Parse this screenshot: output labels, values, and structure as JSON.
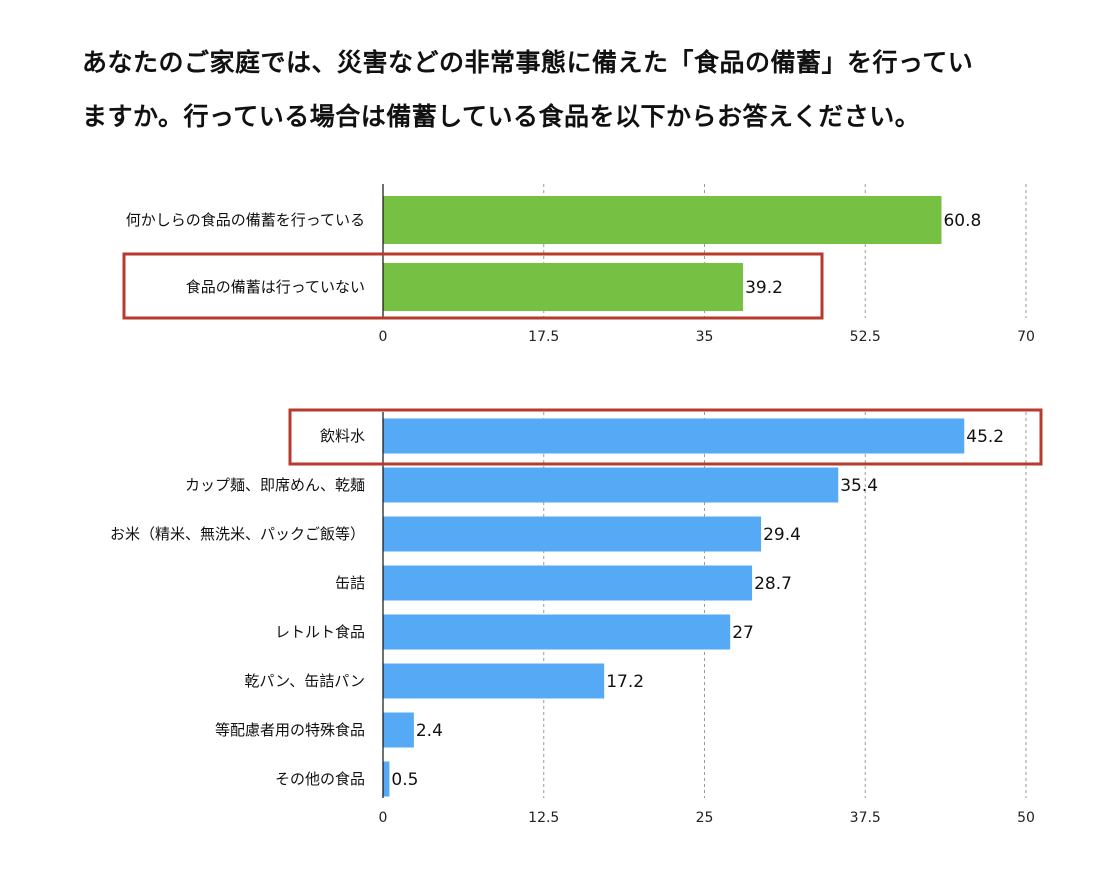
{
  "title_lines": [
    "あなたのご家庭では、災害などの非常事態に備えた「食品の備蓄」を行ってい",
    "ますか。行っている場合は備蓄している食品を以下からお答えください。"
  ],
  "chart_data": [
    {
      "type": "bar",
      "orientation": "horizontal",
      "categories": [
        "何かしらの食品の備蓄を行っている",
        "食品の備蓄は行っていない"
      ],
      "values": [
        60.8,
        39.2
      ],
      "xlim": [
        0,
        70
      ],
      "ticks": [
        "0",
        "17.5",
        "35",
        "52.5",
        "70"
      ],
      "grid": true,
      "color": "#76c043",
      "highlighted": [
        "食品の備蓄は行っていない"
      ],
      "highlight_color": "#b83a2e"
    },
    {
      "type": "bar",
      "orientation": "horizontal",
      "categories": [
        "飲料水",
        "カップ麺、即席めん、乾麺",
        "お米（精米、無洗米、パックご飯等）",
        "缶詰",
        "レトルト食品",
        "乾パン、缶詰パン",
        "等配慮者用の特殊食品",
        "その他の食品"
      ],
      "values": [
        45.2,
        35.4,
        29.4,
        28.7,
        27,
        17.2,
        2.4,
        0.5
      ],
      "xlim": [
        0,
        50
      ],
      "ticks": [
        "0",
        "12.5",
        "25",
        "37.5",
        "50"
      ],
      "grid": true,
      "color": "#55a9f5",
      "highlighted": [
        "飲料水"
      ],
      "highlight_color": "#b83a2e"
    }
  ]
}
